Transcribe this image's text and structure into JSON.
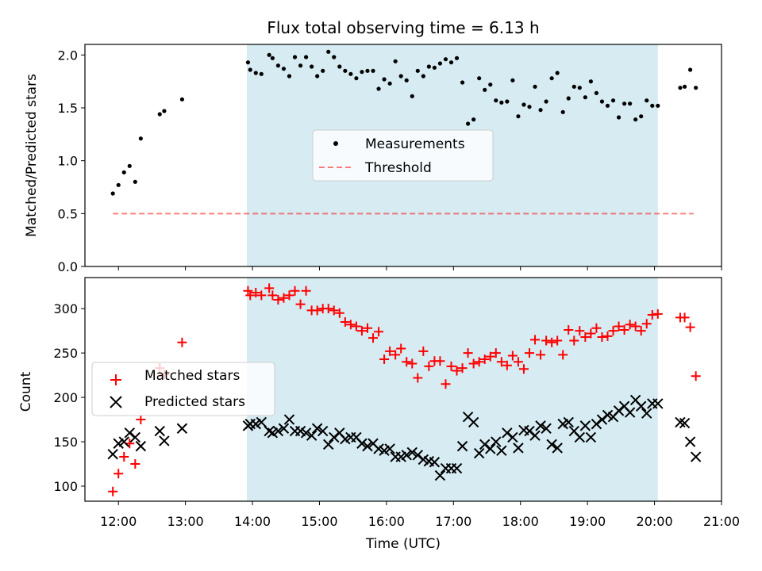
{
  "figure": {
    "title": "Flux total observing time = 6.13 h",
    "xlabel": "Time (UTC)",
    "colors": {
      "shade": "#add8e6",
      "measurements": "#000000",
      "threshold": "#ff0000",
      "matched": "#ff0000",
      "predicted": "#000000"
    }
  },
  "chart_data": [
    {
      "type": "scatter",
      "ylabel": "Matched/Predicted stars",
      "xlim": [
        "11:30",
        "21:00"
      ],
      "ylim": [
        0,
        2.1
      ],
      "yticks": [
        0.0,
        0.5,
        1.0,
        1.5,
        2.0
      ],
      "ytick_labels": [
        "0.0",
        "0.5",
        "1.0",
        "1.5",
        "2.0"
      ],
      "shaded_span": [
        "13:55",
        "20:03"
      ],
      "legend": {
        "placement": "center",
        "entries": [
          "Measurements",
          "Threshold"
        ]
      },
      "threshold": {
        "name": "Threshold",
        "value": 0.5,
        "x": [
          "11:55",
          "20:35"
        ],
        "style": "dashed"
      },
      "series": [
        {
          "name": "Measurements",
          "marker": "dot",
          "x": [
            "11:55",
            "12:00",
            "12:05",
            "12:10",
            "12:15",
            "12:20",
            "12:37",
            "12:41",
            "12:57",
            "13:56",
            "13:58",
            "14:03",
            "14:08",
            "14:15",
            "14:18",
            "14:23",
            "14:28",
            "14:33",
            "14:38",
            "14:43",
            "14:48",
            "14:53",
            "14:58",
            "15:03",
            "15:08",
            "15:13",
            "15:18",
            "15:23",
            "15:28",
            "15:33",
            "15:38",
            "15:43",
            "15:48",
            "15:53",
            "15:58",
            "16:03",
            "16:08",
            "16:13",
            "16:18",
            "16:23",
            "16:28",
            "16:33",
            "16:38",
            "16:43",
            "16:48",
            "16:53",
            "16:58",
            "17:03",
            "17:08",
            "17:13",
            "17:18",
            "17:23",
            "17:28",
            "17:33",
            "17:38",
            "17:43",
            "17:48",
            "17:53",
            "17:58",
            "18:03",
            "18:08",
            "18:13",
            "18:18",
            "18:23",
            "18:28",
            "18:33",
            "18:38",
            "18:43",
            "18:48",
            "18:53",
            "18:58",
            "19:03",
            "19:08",
            "19:13",
            "19:18",
            "19:23",
            "19:28",
            "19:33",
            "19:38",
            "19:43",
            "19:48",
            "19:53",
            "19:58",
            "20:03",
            "20:23",
            "20:27",
            "20:32",
            "20:37"
          ],
          "y": [
            0.69,
            0.77,
            0.89,
            0.95,
            0.8,
            1.21,
            1.44,
            1.47,
            1.58,
            1.93,
            1.86,
            1.83,
            1.82,
            2.0,
            1.97,
            1.9,
            1.87,
            1.8,
            1.98,
            1.9,
            1.98,
            1.89,
            1.8,
            1.85,
            2.03,
            1.98,
            1.89,
            1.85,
            1.82,
            1.78,
            1.84,
            1.85,
            1.85,
            1.68,
            1.77,
            1.73,
            1.94,
            1.8,
            1.76,
            1.61,
            1.85,
            1.8,
            1.89,
            1.88,
            1.92,
            1.96,
            1.93,
            1.97,
            1.74,
            1.35,
            1.39,
            1.78,
            1.67,
            1.72,
            1.57,
            1.55,
            1.56,
            1.76,
            1.42,
            1.53,
            1.51,
            1.7,
            1.48,
            1.56,
            1.78,
            1.83,
            1.46,
            1.59,
            1.7,
            1.69,
            1.6,
            1.75,
            1.64,
            1.56,
            1.52,
            1.57,
            1.41,
            1.54,
            1.54,
            1.39,
            1.42,
            1.57,
            1.52,
            1.52,
            1.69,
            1.7,
            1.86,
            1.69
          ]
        }
      ]
    },
    {
      "type": "scatter",
      "ylabel": "Count",
      "xlim": [
        "11:30",
        "21:00"
      ],
      "ylim": [
        83,
        335
      ],
      "yticks": [
        100,
        150,
        200,
        250,
        300
      ],
      "xticks": [
        "12:00",
        "13:00",
        "14:00",
        "15:00",
        "16:00",
        "17:00",
        "18:00",
        "19:00",
        "20:00",
        "21:00"
      ],
      "shaded_span": [
        "13:55",
        "20:03"
      ],
      "legend": {
        "placement": "center-left",
        "entries": [
          "Matched stars",
          "Predicted stars"
        ]
      },
      "series": [
        {
          "name": "Matched stars",
          "marker": "plus",
          "x": [
            "11:55",
            "12:00",
            "12:05",
            "12:10",
            "12:15",
            "12:20",
            "12:37",
            "12:41",
            "12:57",
            "13:56",
            "13:58",
            "14:03",
            "14:08",
            "14:15",
            "14:18",
            "14:23",
            "14:28",
            "14:33",
            "14:38",
            "14:43",
            "14:48",
            "14:53",
            "14:58",
            "15:03",
            "15:08",
            "15:13",
            "15:18",
            "15:23",
            "15:28",
            "15:33",
            "15:38",
            "15:43",
            "15:48",
            "15:53",
            "15:58",
            "16:03",
            "16:08",
            "16:13",
            "16:18",
            "16:23",
            "16:28",
            "16:33",
            "16:38",
            "16:43",
            "16:48",
            "16:53",
            "16:58",
            "17:03",
            "17:08",
            "17:13",
            "17:18",
            "17:23",
            "17:28",
            "17:33",
            "17:38",
            "17:43",
            "17:48",
            "17:53",
            "17:58",
            "18:03",
            "18:08",
            "18:13",
            "18:18",
            "18:23",
            "18:28",
            "18:33",
            "18:38",
            "18:43",
            "18:48",
            "18:53",
            "18:58",
            "19:03",
            "19:08",
            "19:13",
            "19:18",
            "19:23",
            "19:28",
            "19:33",
            "19:38",
            "19:43",
            "19:48",
            "19:53",
            "19:58",
            "20:03",
            "20:23",
            "20:27",
            "20:32",
            "20:37"
          ],
          "y": [
            94,
            114,
            133,
            148,
            125,
            175,
            233,
            226,
            262,
            320,
            315,
            318,
            315,
            323,
            315,
            310,
            312,
            315,
            320,
            305,
            320,
            298,
            298,
            300,
            300,
            298,
            295,
            285,
            282,
            280,
            275,
            278,
            267,
            274,
            243,
            252,
            248,
            255,
            240,
            238,
            222,
            252,
            235,
            241,
            241,
            215,
            235,
            230,
            233,
            250,
            238,
            240,
            243,
            246,
            250,
            240,
            236,
            247,
            240,
            232,
            250,
            265,
            248,
            264,
            262,
            264,
            248,
            276,
            264,
            275,
            268,
            272,
            278,
            268,
            269,
            275,
            280,
            276,
            282,
            280,
            275,
            283,
            293,
            294,
            290,
            290,
            279,
            224
          ]
        },
        {
          "name": "Predicted stars",
          "marker": "x",
          "x": [
            "11:55",
            "12:00",
            "12:05",
            "12:10",
            "12:15",
            "12:20",
            "12:37",
            "12:41",
            "12:57",
            "13:56",
            "13:58",
            "14:03",
            "14:08",
            "14:15",
            "14:18",
            "14:23",
            "14:28",
            "14:33",
            "14:38",
            "14:43",
            "14:48",
            "14:53",
            "14:58",
            "15:03",
            "15:08",
            "15:13",
            "15:18",
            "15:23",
            "15:28",
            "15:33",
            "15:38",
            "15:43",
            "15:48",
            "15:53",
            "15:58",
            "16:03",
            "16:08",
            "16:13",
            "16:18",
            "16:23",
            "16:28",
            "16:33",
            "16:38",
            "16:43",
            "16:48",
            "16:53",
            "16:58",
            "17:03",
            "17:08",
            "17:13",
            "17:18",
            "17:23",
            "17:28",
            "17:33",
            "17:38",
            "17:43",
            "17:48",
            "17:53",
            "17:58",
            "18:03",
            "18:08",
            "18:13",
            "18:18",
            "18:23",
            "18:28",
            "18:33",
            "18:38",
            "18:43",
            "18:48",
            "18:53",
            "18:58",
            "19:03",
            "19:08",
            "19:13",
            "19:18",
            "19:23",
            "19:28",
            "19:33",
            "19:38",
            "19:43",
            "19:48",
            "19:53",
            "19:58",
            "20:03",
            "20:23",
            "20:27",
            "20:32",
            "20:37"
          ],
          "y": [
            136,
            148,
            150,
            160,
            155,
            145,
            162,
            151,
            165,
            168,
            170,
            170,
            172,
            162,
            160,
            162,
            165,
            175,
            162,
            162,
            160,
            157,
            165,
            162,
            147,
            155,
            160,
            153,
            155,
            155,
            148,
            145,
            148,
            142,
            140,
            142,
            133,
            133,
            135,
            138,
            135,
            130,
            128,
            127,
            112,
            120,
            120,
            120,
            145,
            178,
            172,
            137,
            147,
            142,
            150,
            140,
            160,
            155,
            143,
            163,
            162,
            157,
            168,
            165,
            147,
            143,
            170,
            172,
            162,
            155,
            168,
            155,
            170,
            175,
            180,
            178,
            185,
            190,
            183,
            197,
            190,
            182,
            193,
            193,
            172,
            171,
            150,
            133
          ]
        }
      ]
    }
  ]
}
